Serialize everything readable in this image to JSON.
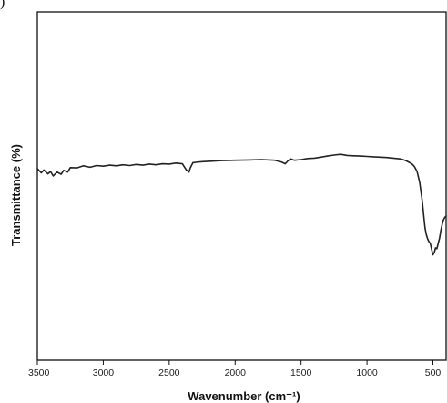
{
  "panel_label": ")",
  "chart_data": {
    "type": "line",
    "title": "",
    "xlabel": "Wavenumber (cm⁻¹)",
    "ylabel": "Transmittance (%)",
    "xlim": [
      3500,
      400
    ],
    "x_reversed": true,
    "y_ticks_shown": false,
    "grid": false,
    "legend": "none",
    "line_color": "#222222",
    "ylim": [
      0,
      100
    ],
    "xticks": [
      3500,
      3000,
      2500,
      2000,
      1500,
      1000,
      500
    ],
    "xtick_labels": [
      "3500",
      "3000",
      "2500",
      "2000",
      "1500",
      "1000",
      "500"
    ],
    "series": [
      {
        "x": [
          3500,
          3470,
          3450,
          3420,
          3400,
          3380,
          3350,
          3320,
          3300,
          3270,
          3250,
          3200,
          3150,
          3100,
          3050,
          3000,
          2950,
          2900,
          2850,
          2800,
          2750,
          2700,
          2650,
          2600,
          2550,
          2500,
          2450,
          2400,
          2370,
          2350,
          2340,
          2320,
          2300,
          2250,
          2200,
          2100,
          2000,
          1900,
          1800,
          1700,
          1650,
          1620,
          1600,
          1580,
          1550,
          1500,
          1450,
          1400,
          1350,
          1300,
          1250,
          1200,
          1150,
          1100,
          1050,
          1000,
          950,
          900,
          850,
          800,
          750,
          720,
          700,
          680,
          660,
          640,
          620,
          600,
          580,
          570,
          560,
          550,
          540,
          530,
          520,
          510,
          500,
          490,
          480,
          470,
          460,
          450,
          440,
          430,
          420,
          410,
          400
        ],
        "y": [
          55.0,
          53.8,
          54.6,
          53.5,
          54.2,
          52.9,
          54.0,
          53.4,
          54.5,
          54.0,
          55.3,
          55.2,
          55.8,
          55.4,
          55.9,
          55.7,
          56.0,
          55.8,
          56.1,
          55.9,
          56.2,
          56.0,
          56.3,
          56.1,
          56.4,
          56.3,
          56.6,
          56.4,
          54.6,
          54.0,
          55.2,
          56.7,
          56.8,
          57.0,
          57.1,
          57.3,
          57.4,
          57.5,
          57.6,
          57.4,
          56.9,
          56.4,
          57.2,
          57.8,
          57.4,
          57.6,
          57.9,
          58.0,
          58.3,
          58.6,
          58.9,
          59.1,
          58.8,
          58.7,
          58.6,
          58.5,
          58.4,
          58.3,
          58.2,
          58.0,
          57.8,
          57.5,
          57.2,
          56.8,
          56.4,
          55.6,
          54.2,
          51.0,
          45.5,
          41.5,
          38.0,
          36.0,
          34.8,
          34.0,
          33.5,
          31.8,
          30.2,
          30.9,
          32.2,
          32.0,
          33.5,
          35.0,
          37.2,
          39.0,
          40.3,
          41.0,
          41.4
        ]
      }
    ]
  }
}
